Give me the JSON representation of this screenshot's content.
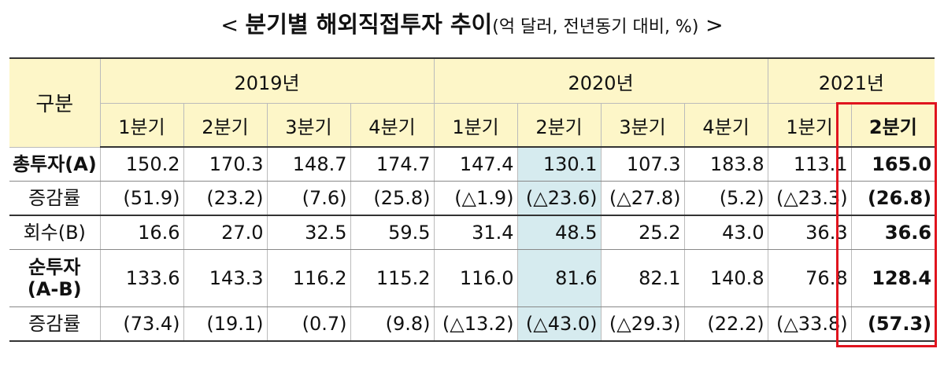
{
  "title": {
    "open": "<",
    "main": "분기별 해외직접투자 추이",
    "unit": "(억 달러, 전년동기 대비, %)",
    "close": ">"
  },
  "table": {
    "corner": "구분",
    "years": [
      "2019년",
      "2020년",
      "2021년"
    ],
    "quarters": [
      "1분기",
      "2분기",
      "3분기",
      "4분기",
      "1분기",
      "2분기",
      "3분기",
      "4분기",
      "1분기",
      "2분기"
    ],
    "rows": [
      {
        "label": [
          "총투자(A)"
        ],
        "values": [
          "150.2",
          "170.3",
          "148.7",
          "174.7",
          "147.4",
          "130.1",
          "107.3",
          "183.8",
          "113.1",
          "165.0"
        ]
      },
      {
        "label": [
          "증감률"
        ],
        "values": [
          "(51.9)",
          "(23.2)",
          "(7.6)",
          "(25.8)",
          "(△1.9)",
          "(△23.6)",
          "(△27.8)",
          "(5.2)",
          "(△23.3)",
          "(26.8)"
        ]
      },
      {
        "label": [
          "회수(B)"
        ],
        "values": [
          "16.6",
          "27.0",
          "32.5",
          "59.5",
          "31.4",
          "48.5",
          "25.2",
          "43.0",
          "36.3",
          "36.6"
        ]
      },
      {
        "label": [
          "순투자",
          "(A-B)"
        ],
        "values": [
          "133.6",
          "143.3",
          "116.2",
          "115.2",
          "116.0",
          "81.6",
          "82.1",
          "140.8",
          "76.8",
          "128.4"
        ]
      },
      {
        "label": [
          "증감률"
        ],
        "values": [
          "(73.4)",
          "(19.1)",
          "(0.7)",
          "(9.8)",
          "(△13.2)",
          "(△43.0)",
          "(△29.3)",
          "(22.2)",
          "(△33.8)",
          "(57.3)"
        ]
      }
    ]
  }
}
